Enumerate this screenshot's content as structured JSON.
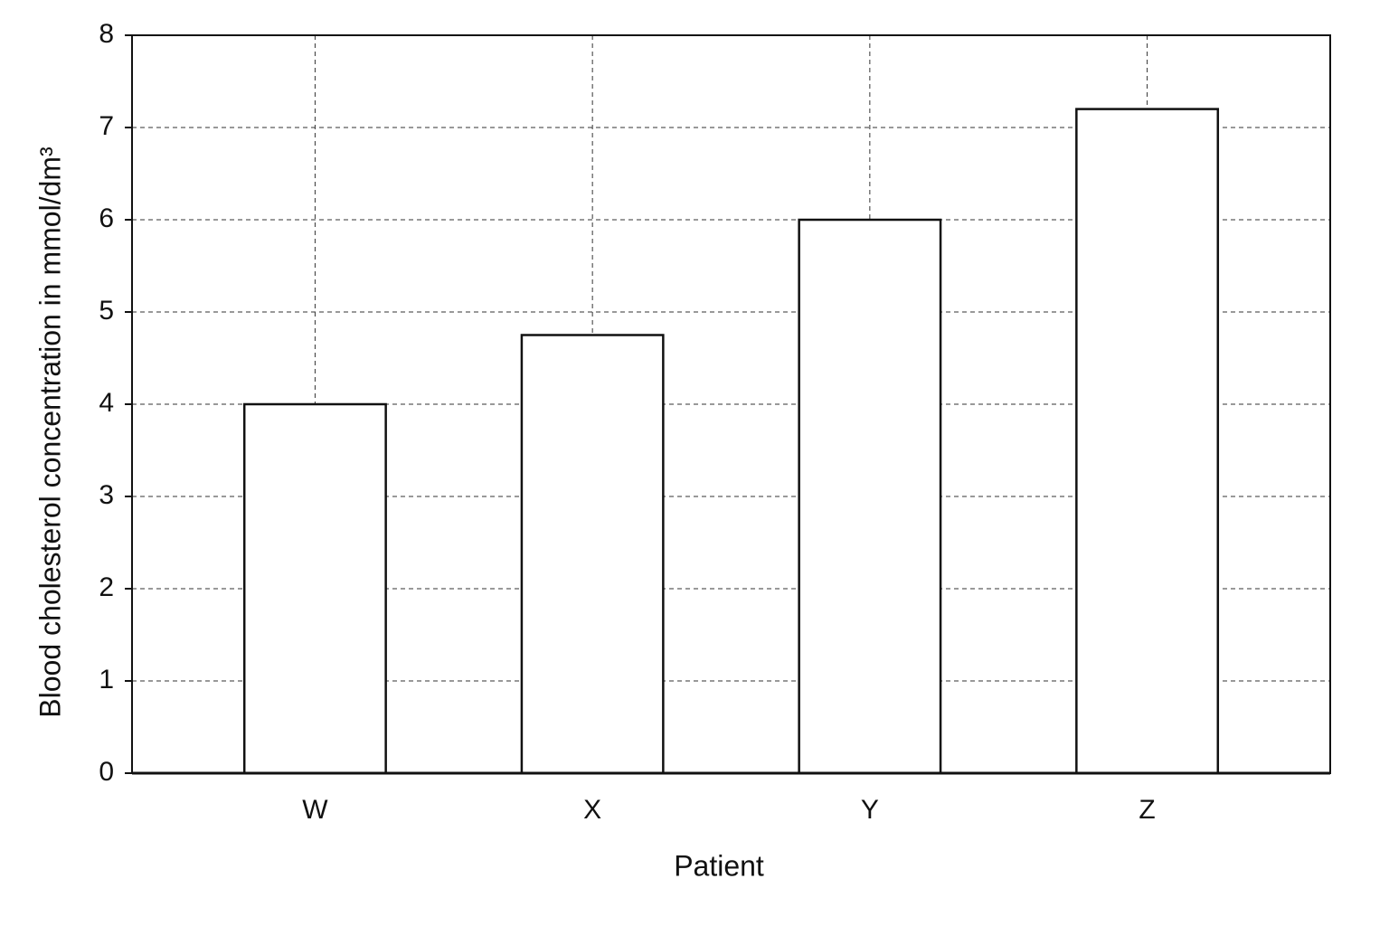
{
  "chart_data": {
    "type": "bar",
    "x_label": "Patient",
    "y_label": "Blood cholesterol concentration in mmol/dm³",
    "categories": [
      "W",
      "X",
      "Y",
      "Z"
    ],
    "values": [
      4.0,
      4.75,
      6.0,
      7.2
    ],
    "color": "#ffffff",
    "ylim": [
      0,
      8
    ],
    "yticks": [
      0,
      1,
      2,
      3,
      4,
      5,
      6,
      7,
      8
    ],
    "grid": true
  }
}
